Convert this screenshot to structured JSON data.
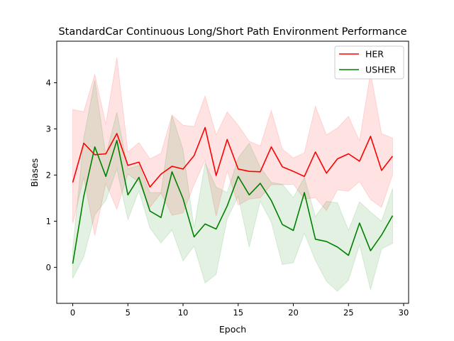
{
  "chart_data": {
    "type": "line",
    "title": "StandardCar Continuous Long/Short Path Environment Performance",
    "xlabel": "Epoch",
    "ylabel": "Biases",
    "xlim": [
      -1.45,
      30.45
    ],
    "ylim": [
      -0.78,
      4.9
    ],
    "xticks": [
      0,
      5,
      10,
      15,
      20,
      25,
      30
    ],
    "yticks": [
      0,
      1,
      2,
      3,
      4
    ],
    "grid": false,
    "legend": "top-right",
    "x": [
      0,
      1,
      2,
      3,
      4,
      5,
      6,
      7,
      8,
      9,
      10,
      11,
      12,
      13,
      14,
      15,
      16,
      17,
      18,
      19,
      20,
      21,
      22,
      23,
      24,
      25,
      26,
      27,
      28,
      29
    ],
    "series": [
      {
        "name": "HER",
        "color": "#ff0000",
        "band_color": "#ff0000",
        "values": [
          1.84,
          2.69,
          2.44,
          2.46,
          2.9,
          2.21,
          2.28,
          1.74,
          2.02,
          2.19,
          2.13,
          2.42,
          3.03,
          1.99,
          2.77,
          2.13,
          2.08,
          2.07,
          2.61,
          2.18,
          2.08,
          1.97,
          2.5,
          2.04,
          2.35,
          2.46,
          2.3,
          2.84,
          2.1,
          2.41
        ],
        "upper": [
          3.42,
          3.37,
          4.18,
          3.1,
          4.55,
          2.5,
          2.7,
          2.35,
          2.47,
          3.3,
          3.08,
          3.05,
          3.71,
          2.87,
          3.37,
          3.08,
          2.73,
          2.63,
          3.4,
          2.56,
          2.37,
          2.48,
          3.49,
          2.87,
          3.02,
          3.27,
          2.74,
          4.22,
          2.9,
          2.8
        ],
        "lower": [
          0.95,
          1.95,
          0.69,
          1.82,
          1.26,
          2.02,
          1.85,
          1.3,
          1.61,
          1.13,
          1.18,
          1.79,
          2.32,
          1.11,
          2.09,
          1.35,
          1.48,
          1.51,
          1.79,
          1.79,
          1.8,
          1.48,
          1.51,
          1.23,
          1.68,
          1.65,
          1.86,
          1.47,
          1.3,
          2.01
        ]
      },
      {
        "name": "USHER",
        "color": "#008000",
        "band_color": "#008000",
        "values": [
          0.08,
          1.54,
          2.61,
          1.97,
          2.75,
          1.57,
          1.95,
          1.22,
          1.08,
          2.07,
          1.49,
          0.66,
          0.94,
          0.83,
          1.33,
          1.97,
          1.57,
          1.82,
          1.45,
          0.93,
          0.8,
          1.62,
          0.61,
          0.56,
          0.44,
          0.26,
          0.96,
          0.36,
          0.7,
          1.12
        ],
        "upper": [
          0.4,
          2.8,
          4.06,
          2.43,
          3.36,
          2.14,
          2.21,
          1.62,
          1.62,
          3.29,
          2.55,
          0.86,
          2.26,
          1.74,
          1.62,
          2.37,
          2.69,
          2.17,
          1.84,
          1.8,
          1.51,
          1.95,
          1.1,
          1.43,
          1.4,
          0.8,
          1.42,
          1.2,
          1.0,
          1.71
        ],
        "lower": [
          -0.24,
          0.23,
          1.14,
          1.45,
          2.13,
          1.03,
          1.66,
          0.85,
          0.53,
          0.81,
          0.14,
          0.46,
          -0.34,
          -0.15,
          1.05,
          1.54,
          0.44,
          1.43,
          0.98,
          0.06,
          0.1,
          0.74,
          0.15,
          -0.3,
          -0.52,
          -0.28,
          0.49,
          -0.48,
          0.4,
          0.52
        ]
      }
    ]
  }
}
